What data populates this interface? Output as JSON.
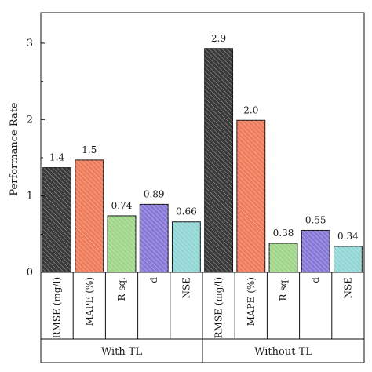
{
  "chart_data": {
    "type": "bar",
    "ylabel": "Performance Rate",
    "ylim": [
      0,
      3.4
    ],
    "yticks": [
      0,
      1,
      2,
      3
    ],
    "groups": [
      {
        "name": "With TL",
        "bars": [
          {
            "category": "RMSE (mg/l)",
            "value": 1.37,
            "label": "1.4",
            "color": "#3a3a3a"
          },
          {
            "category": "MAPE (%)",
            "value": 1.47,
            "label": "1.5",
            "color": "#ef7c5a"
          },
          {
            "category": "R sq.",
            "value": 0.74,
            "label": "0.74",
            "color": "#9fd68a"
          },
          {
            "category": "d",
            "value": 0.89,
            "label": "0.89",
            "color": "#8878d8"
          },
          {
            "category": "NSE",
            "value": 0.66,
            "label": "0.66",
            "color": "#92d7d6"
          }
        ]
      },
      {
        "name": "Without TL",
        "bars": [
          {
            "category": "RMSE (mg/l)",
            "value": 2.93,
            "label": "2.9",
            "color": "#3a3a3a"
          },
          {
            "category": "MAPE (%)",
            "value": 1.99,
            "label": "2.0",
            "color": "#ef7c5a"
          },
          {
            "category": "R sq.",
            "value": 0.38,
            "label": "0.38",
            "color": "#9fd68a"
          },
          {
            "category": "d",
            "value": 0.55,
            "label": "0.55",
            "color": "#8878d8"
          },
          {
            "category": "NSE",
            "value": 0.34,
            "label": "0.34",
            "color": "#92d7d6"
          }
        ]
      }
    ]
  }
}
